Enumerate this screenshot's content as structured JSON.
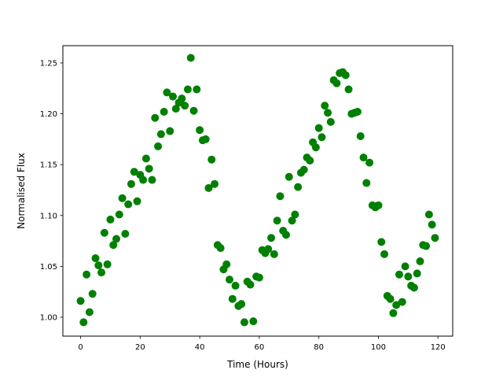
{
  "chart_data": {
    "type": "scatter",
    "title": "",
    "xlabel": "Time (Hours)",
    "ylabel": "Normalised Flux",
    "xlim": [
      -5.95,
      124.95
    ],
    "ylim": [
      0.9814,
      1.267
    ],
    "xticks": [
      0,
      20,
      40,
      60,
      80,
      100,
      120
    ],
    "xtick_labels": [
      "0",
      "20",
      "40",
      "60",
      "80",
      "100",
      "120"
    ],
    "yticks": [
      1.0,
      1.05,
      1.1,
      1.15,
      1.2,
      1.25
    ],
    "ytick_labels": [
      "1.00",
      "1.05",
      "1.10",
      "1.15",
      "1.20",
      "1.25"
    ],
    "grid": false,
    "marker_color": "#008000",
    "x": [
      0,
      1,
      2,
      3,
      4,
      5,
      6,
      7,
      8,
      9,
      10,
      11,
      12,
      13,
      14,
      15,
      16,
      17,
      18,
      19,
      20,
      21,
      22,
      23,
      24,
      25,
      26,
      27,
      28,
      29,
      30,
      31,
      32,
      33,
      34,
      35,
      36,
      37,
      38,
      39,
      40,
      41,
      42,
      43,
      44,
      45,
      46,
      47,
      48,
      49,
      50,
      51,
      52,
      53,
      54,
      55,
      56,
      57,
      58,
      59,
      60,
      61,
      62,
      63,
      64,
      65,
      66,
      67,
      68,
      69,
      70,
      71,
      72,
      73,
      74,
      75,
      76,
      77,
      78,
      79,
      80,
      81,
      82,
      83,
      84,
      85,
      86,
      87,
      88,
      89,
      90,
      91,
      92,
      93,
      94,
      95,
      96,
      97,
      98,
      99,
      100,
      101,
      102,
      103,
      104,
      105,
      106,
      107,
      108,
      109,
      110,
      111,
      112,
      113,
      114,
      115,
      116,
      117,
      118,
      119
    ],
    "y": [
      1.016,
      0.995,
      1.042,
      1.005,
      1.023,
      1.058,
      1.051,
      1.044,
      1.083,
      1.052,
      1.096,
      1.071,
      1.077,
      1.101,
      1.117,
      1.082,
      1.111,
      1.131,
      1.143,
      1.114,
      1.14,
      1.135,
      1.156,
      1.146,
      1.135,
      1.196,
      1.168,
      1.18,
      1.202,
      1.221,
      1.183,
      1.217,
      1.205,
      1.211,
      1.215,
      1.208,
      1.224,
      1.255,
      1.203,
      1.224,
      1.184,
      1.174,
      1.175,
      1.127,
      1.155,
      1.131,
      1.071,
      1.068,
      1.047,
      1.052,
      1.037,
      1.018,
      1.031,
      1.011,
      1.013,
      0.995,
      1.035,
      1.032,
      0.996,
      1.04,
      1.039,
      1.066,
      1.063,
      1.067,
      1.078,
      1.062,
      1.095,
      1.119,
      1.085,
      1.081,
      1.138,
      1.095,
      1.101,
      1.128,
      1.142,
      1.145,
      1.157,
      1.154,
      1.172,
      1.167,
      1.186,
      1.177,
      1.208,
      1.201,
      1.192,
      1.233,
      1.23,
      1.24,
      1.241,
      1.238,
      1.224,
      1.2,
      1.201,
      1.202,
      1.178,
      1.157,
      1.132,
      1.152,
      1.11,
      1.108,
      1.11,
      1.074,
      1.062,
      1.021,
      1.018,
      1.004,
      1.012,
      1.042,
      1.015,
      1.05,
      1.04,
      1.031,
      1.029,
      1.043,
      1.055,
      1.071,
      1.07,
      1.101,
      1.091,
      1.078
    ]
  }
}
